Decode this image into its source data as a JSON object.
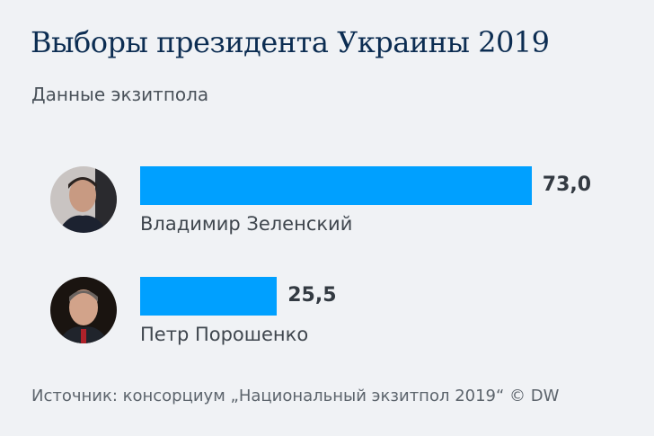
{
  "chart_data": {
    "type": "bar",
    "orientation": "horizontal",
    "title": "Выборы президента Украины 2019",
    "subtitle": "Данные экзитпола",
    "categories": [
      "Владимир Зеленский",
      "Петр Порошенко"
    ],
    "values": [
      73.0,
      25.5
    ],
    "value_labels": [
      "73,0",
      "25,5"
    ],
    "bar_color": "#00a0ff",
    "grid": false,
    "xlim": [
      0,
      100
    ],
    "source": "Источник: консорциум „Национальный экзитпол 2019“ © DW"
  },
  "avatars": [
    "zelensky-photo",
    "poroshenko-photo"
  ]
}
